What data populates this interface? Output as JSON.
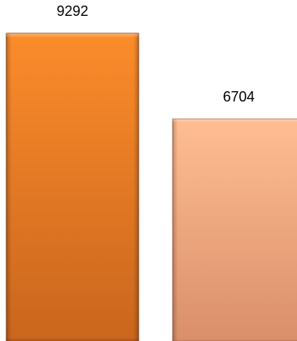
{
  "chart_data": {
    "type": "bar",
    "categories": [
      "",
      ""
    ],
    "values": [
      9292,
      6704
    ],
    "data_labels": [
      "9292",
      "6704"
    ],
    "ylim": [
      0,
      9292
    ],
    "grid": false,
    "legend": "none",
    "bar_colors": [
      {
        "top": "#fb8c2b",
        "bottom": "#c9651d",
        "edge": "#8a4514"
      },
      {
        "top": "#ffbd92",
        "bottom": "#d98f6a",
        "edge": "#a5684a"
      }
    ]
  }
}
